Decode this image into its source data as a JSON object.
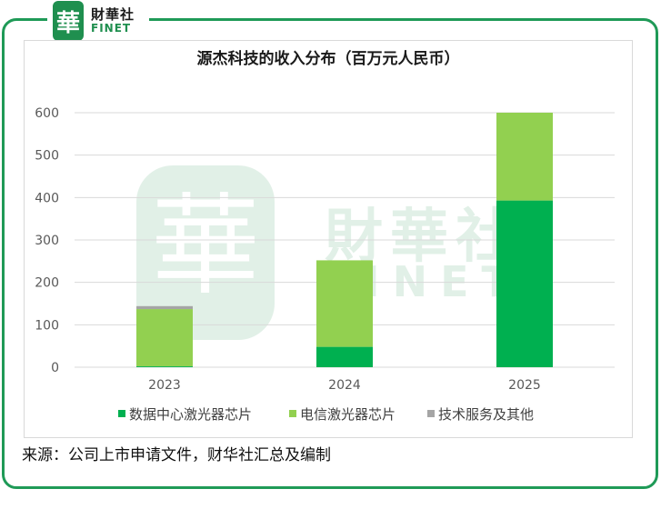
{
  "brand": {
    "logo_glyph": "華",
    "logo_cn": "財華社",
    "logo_en": "FINET",
    "accent_color": "#1f9a57"
  },
  "chart_data": {
    "type": "bar",
    "stacked": true,
    "title": "源杰科技的收入分布（百万元人民币）",
    "categories": [
      "2023",
      "2024",
      "2025"
    ],
    "series": [
      {
        "name": "数据中心激光器芯片",
        "color": "#00b050",
        "values": [
          2,
          48,
          393
        ]
      },
      {
        "name": "电信激光器芯片",
        "color": "#92d050",
        "values": [
          135,
          204,
          207
        ]
      },
      {
        "name": "技术服务及其他",
        "color": "#a5a5a5",
        "values": [
          7,
          0,
          0
        ]
      }
    ],
    "yticks": [
      0,
      100,
      200,
      300,
      400,
      500,
      600
    ],
    "ylim": [
      0,
      600
    ],
    "grid": true,
    "legend_position": "bottom",
    "watermark_cn": "財華社",
    "watermark_en": "FINET",
    "watermark_glyph": "華"
  },
  "footer": {
    "source": "来源：公司上市申请文件，财华社汇总及编制"
  }
}
